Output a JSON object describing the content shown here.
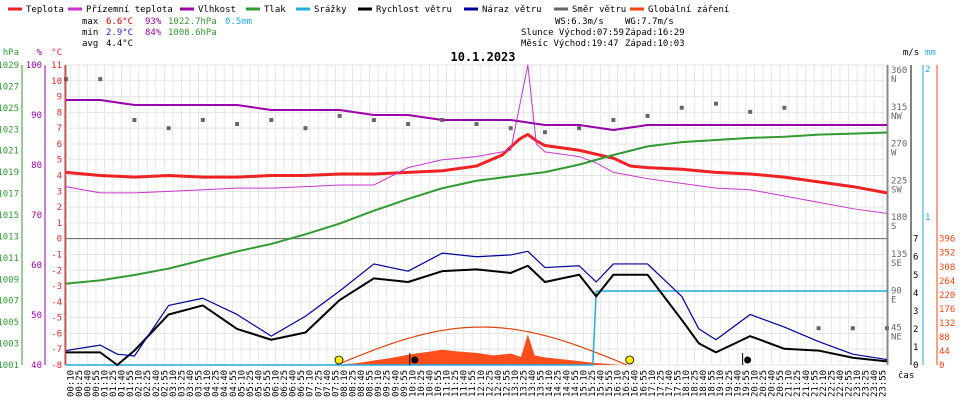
{
  "chart_data": {
    "type": "line",
    "title": "10.1.2023",
    "x_unit_label": "čas",
    "legend": {
      "placement": "top",
      "items": [
        {
          "label": "Teplota",
          "color": "#ee2222"
        },
        {
          "label": "Přízemní teplota",
          "color": "#cc33cc"
        },
        {
          "label": "Vlhkost",
          "color": "#9900aa"
        },
        {
          "label": "Tlak",
          "color": "#339933"
        },
        {
          "label": "Srážky",
          "color": "#22aadd"
        },
        {
          "label": "Rychlost větru",
          "color": "#000000"
        },
        {
          "label": "Náraz větru",
          "color": "#000099"
        },
        {
          "label": "Směr větru",
          "color": "#666666"
        },
        {
          "label": "Globální záření",
          "color": "#ff4411"
        }
      ]
    },
    "stats": {
      "max": {
        "label": "max",
        "temp": "6.6°C",
        "hum": "93%",
        "press": "1022.7hPa",
        "rain": "0.5mm"
      },
      "min": {
        "label": "min",
        "temp": "2.9°C",
        "hum": "84%",
        "press": "1008.6hPa"
      },
      "avg": {
        "label": "avg",
        "temp": "4.4°C"
      }
    },
    "info": {
      "ws": "WS:6.3m/s",
      "wg": "WG:7.7m/s",
      "sun": "Slunce Východ:07:59",
      "sun_set": "Západ:16:29",
      "moon": "Měsíc Východ:19:47",
      "moon_set": "Západ:10:03"
    },
    "axes": {
      "hpa": {
        "unit": "hPa",
        "ticks": [
          "1029",
          "1027",
          "1025",
          "1023",
          "1021",
          "1019",
          "1017",
          "1015",
          "1013",
          "1011",
          "1009",
          "1007",
          "1005",
          "1003",
          "1001"
        ],
        "range": [
          1001,
          1029
        ]
      },
      "pct": {
        "unit": "%",
        "ticks": [
          "100",
          "90",
          "80",
          "70",
          "60",
          "50",
          "40"
        ],
        "range": [
          40,
          100
        ]
      },
      "temp": {
        "unit": "°C",
        "ticks": [
          "11",
          "10",
          "9",
          "8",
          "7",
          "6",
          "5",
          "4",
          "3",
          "2",
          "1",
          "0",
          "-1",
          "-2",
          "-3",
          "-4",
          "-5",
          "-6",
          "-7",
          "-8"
        ],
        "range": [
          -8,
          11
        ]
      },
      "dir": {
        "unit": "",
        "ticks": [
          "360\nN",
          "315\nNW",
          "270\nW",
          "225\nSW",
          "180\nS",
          "135\nSE",
          "90\nE",
          "45\nNE"
        ]
      },
      "ms": {
        "unit": "m/s",
        "ticks": [
          "7",
          "6",
          "5",
          "4",
          "3",
          "2",
          "1",
          "0"
        ],
        "range": [
          0,
          7
        ]
      },
      "mm": {
        "unit": "mm",
        "ticks": [
          "2",
          "1"
        ]
      },
      "wm2": {
        "unit": "W/m2",
        "ticks": [
          "396",
          "352",
          "308",
          "264",
          "220",
          "176",
          "132",
          "88",
          "44",
          "0"
        ],
        "range": [
          0,
          396
        ]
      }
    },
    "x_ticks": [
      "00:10",
      "00:25",
      "00:40",
      "00:55",
      "01:10",
      "01:25",
      "01:40",
      "01:55",
      "02:10",
      "02:25",
      "02:40",
      "02:55",
      "03:10",
      "03:25",
      "03:40",
      "03:55",
      "04:10",
      "04:25",
      "04:40",
      "04:55",
      "05:10",
      "05:25",
      "05:40",
      "05:55",
      "06:10",
      "06:25",
      "06:40",
      "06:55",
      "07:10",
      "07:25",
      "07:40",
      "07:55",
      "08:10",
      "08:25",
      "08:40",
      "08:55",
      "09:10",
      "09:25",
      "09:40",
      "09:55",
      "10:10",
      "10:25",
      "10:40",
      "10:55",
      "11:10",
      "11:25",
      "11:40",
      "11:55",
      "12:10",
      "12:25",
      "12:40",
      "12:55",
      "13:10",
      "13:25",
      "13:40",
      "13:55",
      "14:10",
      "14:25",
      "14:40",
      "14:55",
      "15:10",
      "15:25",
      "15:40",
      "15:55",
      "16:10",
      "16:25",
      "16:40",
      "16:55",
      "17:10",
      "17:25",
      "17:40",
      "17:55",
      "18:10",
      "18:25",
      "18:40",
      "18:55",
      "19:10",
      "19:25",
      "19:40",
      "19:55",
      "20:10",
      "20:25",
      "20:40",
      "20:55",
      "21:10",
      "21:25",
      "21:40",
      "21:55",
      "22:10",
      "22:25",
      "22:40",
      "22:55",
      "23:10",
      "23:25",
      "23:40",
      "23:55"
    ],
    "series": [
      {
        "name": "Teplota",
        "unit": "°C",
        "color": "#ee2222",
        "points": [
          [
            0,
            4.2
          ],
          [
            1,
            4.0
          ],
          [
            2,
            3.9
          ],
          [
            3,
            4.0
          ],
          [
            4,
            3.9
          ],
          [
            5,
            3.9
          ],
          [
            6,
            4.0
          ],
          [
            7,
            4.0
          ],
          [
            8,
            4.1
          ],
          [
            9,
            4.1
          ],
          [
            10,
            4.2
          ],
          [
            11,
            4.3
          ],
          [
            12,
            4.6
          ],
          [
            12.75,
            5.3
          ],
          [
            13.25,
            6.3
          ],
          [
            13.5,
            6.6
          ],
          [
            13.75,
            6.2
          ],
          [
            14,
            5.9
          ],
          [
            15,
            5.6
          ],
          [
            16,
            5.1
          ],
          [
            16.5,
            4.6
          ],
          [
            17,
            4.5
          ],
          [
            18,
            4.4
          ],
          [
            19,
            4.2
          ],
          [
            20,
            4.1
          ],
          [
            21,
            3.9
          ],
          [
            22,
            3.6
          ],
          [
            23,
            3.3
          ],
          [
            24,
            2.9
          ]
        ]
      },
      {
        "name": "Přízemní teplota",
        "unit": "°C",
        "color": "#cc33cc",
        "points": [
          [
            0,
            3.3
          ],
          [
            1,
            2.9
          ],
          [
            2,
            2.9
          ],
          [
            3,
            3.0
          ],
          [
            4,
            3.1
          ],
          [
            5,
            3.2
          ],
          [
            6,
            3.2
          ],
          [
            7,
            3.3
          ],
          [
            8,
            3.4
          ],
          [
            9,
            3.4
          ],
          [
            10,
            4.5
          ],
          [
            11,
            5.0
          ],
          [
            12,
            5.2
          ],
          [
            13,
            5.6
          ],
          [
            13.5,
            11.0
          ],
          [
            13.75,
            6.0
          ],
          [
            14,
            5.5
          ],
          [
            15,
            5.2
          ],
          [
            15.5,
            4.8
          ],
          [
            16,
            4.2
          ],
          [
            17,
            3.8
          ],
          [
            18,
            3.5
          ],
          [
            19,
            3.2
          ],
          [
            20,
            3.1
          ],
          [
            21,
            2.7
          ],
          [
            22,
            2.3
          ],
          [
            23,
            1.9
          ],
          [
            24,
            1.6
          ]
        ]
      },
      {
        "name": "Vlhkost",
        "unit": "%",
        "color": "#9900aa",
        "points": [
          [
            0,
            93
          ],
          [
            1,
            93
          ],
          [
            2,
            92
          ],
          [
            3,
            92
          ],
          [
            4,
            92
          ],
          [
            5,
            92
          ],
          [
            6,
            91
          ],
          [
            7,
            91
          ],
          [
            8,
            91
          ],
          [
            9,
            90
          ],
          [
            10,
            90
          ],
          [
            11,
            89
          ],
          [
            12,
            89
          ],
          [
            13,
            89
          ],
          [
            14,
            88
          ],
          [
            15,
            88
          ],
          [
            16,
            87
          ],
          [
            17,
            88
          ],
          [
            18,
            88
          ],
          [
            19,
            88
          ],
          [
            20,
            88
          ],
          [
            21,
            88
          ],
          [
            22,
            88
          ],
          [
            23,
            88
          ],
          [
            24,
            88
          ]
        ]
      },
      {
        "name": "Tlak",
        "unit": "hPa",
        "color": "#339933",
        "points": [
          [
            0,
            1008.6
          ],
          [
            1,
            1008.9
          ],
          [
            2,
            1009.4
          ],
          [
            3,
            1010.0
          ],
          [
            4,
            1010.8
          ],
          [
            5,
            1011.6
          ],
          [
            6,
            1012.3
          ],
          [
            7,
            1013.2
          ],
          [
            8,
            1014.2
          ],
          [
            9,
            1015.4
          ],
          [
            10,
            1016.5
          ],
          [
            11,
            1017.5
          ],
          [
            12,
            1018.2
          ],
          [
            13,
            1018.6
          ],
          [
            14,
            1019.0
          ],
          [
            15,
            1019.7
          ],
          [
            16,
            1020.6
          ],
          [
            17,
            1021.4
          ],
          [
            18,
            1021.8
          ],
          [
            19,
            1022.0
          ],
          [
            20,
            1022.2
          ],
          [
            21,
            1022.3
          ],
          [
            22,
            1022.5
          ],
          [
            23,
            1022.6
          ],
          [
            24,
            1022.7
          ]
        ]
      },
      {
        "name": "Srážky",
        "unit": "mm",
        "color": "#22aadd",
        "points": [
          [
            0,
            0
          ],
          [
            15.4,
            0
          ],
          [
            15.5,
            0.5
          ],
          [
            24,
            0.5
          ]
        ]
      },
      {
        "name": "Rychlost větru",
        "unit": "m/s",
        "color": "#000000",
        "points": [
          [
            0,
            0.7
          ],
          [
            1,
            0.7
          ],
          [
            1.5,
            0
          ],
          [
            2,
            0.8
          ],
          [
            3,
            2.8
          ],
          [
            4,
            3.3
          ],
          [
            5,
            2.0
          ],
          [
            6,
            1.4
          ],
          [
            7,
            1.8
          ],
          [
            8,
            3.6
          ],
          [
            9,
            4.8
          ],
          [
            10,
            4.6
          ],
          [
            11,
            5.2
          ],
          [
            12,
            5.3
          ],
          [
            13,
            5.1
          ],
          [
            13.5,
            5.5
          ],
          [
            14,
            4.6
          ],
          [
            15,
            5.0
          ],
          [
            15.5,
            3.8
          ],
          [
            16,
            5.0
          ],
          [
            17,
            5.0
          ],
          [
            18,
            2.5
          ],
          [
            18.5,
            1.2
          ],
          [
            19,
            0.7
          ],
          [
            20,
            1.6
          ],
          [
            21,
            0.9
          ],
          [
            22,
            0.8
          ],
          [
            23,
            0.4
          ],
          [
            24,
            0.2
          ]
        ]
      },
      {
        "name": "Náraz větru",
        "unit": "m/s",
        "color": "#000099",
        "points": [
          [
            0,
            0.8
          ],
          [
            1,
            1.1
          ],
          [
            1.5,
            0.6
          ],
          [
            2,
            0.5
          ],
          [
            3,
            3.3
          ],
          [
            4,
            3.7
          ],
          [
            5,
            2.8
          ],
          [
            6,
            1.6
          ],
          [
            7,
            2.7
          ],
          [
            8,
            4.1
          ],
          [
            9,
            5.6
          ],
          [
            10,
            5.2
          ],
          [
            11,
            6.2
          ],
          [
            12,
            6.0
          ],
          [
            13,
            6.1
          ],
          [
            13.5,
            6.3
          ],
          [
            14,
            5.4
          ],
          [
            15,
            5.5
          ],
          [
            15.5,
            4.6
          ],
          [
            16,
            5.6
          ],
          [
            17,
            5.6
          ],
          [
            18,
            3.8
          ],
          [
            18.5,
            2.0
          ],
          [
            19,
            1.4
          ],
          [
            20,
            2.8
          ],
          [
            21,
            2.1
          ],
          [
            22,
            1.3
          ],
          [
            23,
            0.6
          ],
          [
            24,
            0.3
          ]
        ]
      },
      {
        "name": "Směr větru",
        "unit": "°",
        "color": "#666666",
        "style": "points",
        "points": [
          [
            0,
            350
          ],
          [
            1,
            350
          ],
          [
            2,
            300
          ],
          [
            3,
            290
          ],
          [
            4,
            300
          ],
          [
            5,
            295
          ],
          [
            6,
            300
          ],
          [
            7,
            290
          ],
          [
            8,
            305
          ],
          [
            9,
            300
          ],
          [
            10,
            295
          ],
          [
            11,
            300
          ],
          [
            12,
            295
          ],
          [
            13,
            290
          ],
          [
            14,
            285
          ],
          [
            15,
            290
          ],
          [
            16,
            300
          ],
          [
            17,
            305
          ],
          [
            18,
            315
          ],
          [
            19,
            320
          ],
          [
            20,
            310
          ],
          [
            21,
            315
          ],
          [
            22,
            45
          ],
          [
            23,
            45
          ],
          [
            24,
            45
          ]
        ]
      },
      {
        "name": "Globální záření",
        "unit": "W/m2",
        "color": "#ff4411",
        "style": "area",
        "points": [
          [
            7.9,
            0
          ],
          [
            8.5,
            6
          ],
          [
            9,
            14
          ],
          [
            9.5,
            22
          ],
          [
            10,
            32
          ],
          [
            10.5,
            40
          ],
          [
            11,
            48
          ],
          [
            11.5,
            42
          ],
          [
            12,
            38
          ],
          [
            12.5,
            30
          ],
          [
            13,
            36
          ],
          [
            13.3,
            25
          ],
          [
            13.5,
            96
          ],
          [
            13.7,
            30
          ],
          [
            14,
            24
          ],
          [
            14.5,
            18
          ],
          [
            15,
            12
          ],
          [
            15.5,
            6
          ],
          [
            16,
            2
          ],
          [
            16.3,
            0
          ]
        ]
      }
    ],
    "theoretical_radiation": {
      "color": "#dd4411",
      "peak_time": 12.2,
      "peak": 119,
      "start": 7.9,
      "end": 16.4
    },
    "markers": [
      {
        "label": "sunrise",
        "x": 7.98,
        "color": "#ffee00"
      },
      {
        "label": "sunset",
        "x": 16.48,
        "color": "#ffee00"
      },
      {
        "label": "moonset",
        "x": 10.05,
        "color": "#000000"
      },
      {
        "label": "moonrise",
        "x": 19.78,
        "color": "#000000"
      }
    ],
    "grid": true
  }
}
